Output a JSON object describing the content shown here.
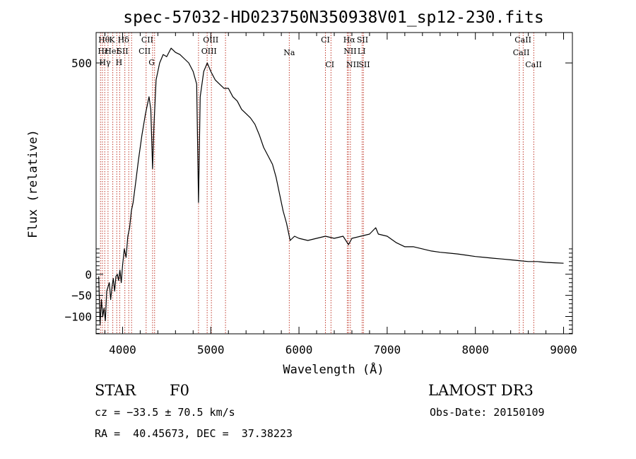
{
  "chart_data": {
    "type": "line",
    "title": "spec-57032-HD023750N350938V01_sp12-230.fits",
    "xlabel": "Wavelength (Å)",
    "ylabel": "Flux (relative)",
    "xlim": [
      3700,
      9100
    ],
    "ylim": [
      -141,
      572
    ],
    "xticks": [
      4000,
      5000,
      6000,
      7000,
      8000,
      9000
    ],
    "xtick_labels": [
      "4000",
      "5000",
      "6000",
      "7000",
      "8000",
      "9000"
    ],
    "yticks": [
      -100,
      -50,
      0,
      500
    ],
    "ytick_labels": [
      "−100",
      "−50",
      "0",
      "500"
    ],
    "grid": false,
    "series": [
      {
        "x": [
          3730,
          3745,
          3760,
          3775,
          3790,
          3805,
          3820,
          3835,
          3850,
          3865,
          3880,
          3895,
          3910,
          3925,
          3940,
          3955,
          3970,
          3985,
          4000,
          4020,
          4040,
          4060,
          4080,
          4100,
          4120,
          4150,
          4180,
          4220,
          4260,
          4300,
          4320,
          4340,
          4355,
          4380,
          4420,
          4460,
          4500,
          4550,
          4600,
          4650,
          4700,
          4750,
          4800,
          4840,
          4861,
          4880,
          4920,
          4960,
          5000,
          5050,
          5100,
          5150,
          5200,
          5250,
          5300,
          5350,
          5400,
          5450,
          5500,
          5550,
          5600,
          5650,
          5700,
          5740,
          5780,
          5820,
          5860,
          5900,
          5950,
          6000,
          6100,
          6200,
          6300,
          6400,
          6500,
          6562,
          6600,
          6700,
          6800,
          6870,
          6900,
          7000,
          7100,
          7200,
          7300,
          7400,
          7500,
          7600,
          7700,
          7800,
          7900,
          8000,
          8100,
          8200,
          8300,
          8400,
          8500,
          8600,
          8700,
          8800,
          8900,
          9000
        ],
        "y": [
          -5,
          -120,
          -60,
          -100,
          -80,
          -110,
          -40,
          -30,
          -20,
          -60,
          -30,
          -10,
          -40,
          -5,
          0,
          -15,
          10,
          -20,
          20,
          60,
          40,
          90,
          110,
          150,
          170,
          220,
          270,
          330,
          380,
          420,
          390,
          250,
          350,
          460,
          500,
          520,
          515,
          535,
          525,
          520,
          510,
          500,
          480,
          450,
          170,
          420,
          480,
          500,
          480,
          460,
          450,
          440,
          440,
          420,
          410,
          390,
          380,
          370,
          355,
          330,
          300,
          280,
          260,
          230,
          190,
          150,
          120,
          80,
          90,
          85,
          80,
          85,
          90,
          85,
          90,
          70,
          85,
          90,
          95,
          110,
          95,
          90,
          75,
          65,
          65,
          60,
          55,
          52,
          50,
          48,
          45,
          42,
          40,
          38,
          36,
          34,
          32,
          30,
          30,
          28,
          27,
          26
        ]
      }
    ],
    "annotations": [
      "Hθ",
      "K",
      "Hδ",
      "CII",
      "Hε",
      "HeI",
      "SII",
      "CII",
      "Hγ",
      "H",
      "OIII",
      "G",
      "OIII",
      "Na",
      "CI",
      "CI",
      "Hα",
      "NII",
      "NII",
      "SII",
      "LI",
      "SII",
      "CaII",
      "CaII",
      "CaII"
    ]
  },
  "info": {
    "class_label": "STAR",
    "subclass": "F0",
    "survey": "LAMOST DR3",
    "cz": "cz = −33.5 ± 70.5 km/s",
    "obs_date": "Obs-Date: 20150109",
    "coords": "RA =  40.45673, DEC =  37.38223"
  }
}
